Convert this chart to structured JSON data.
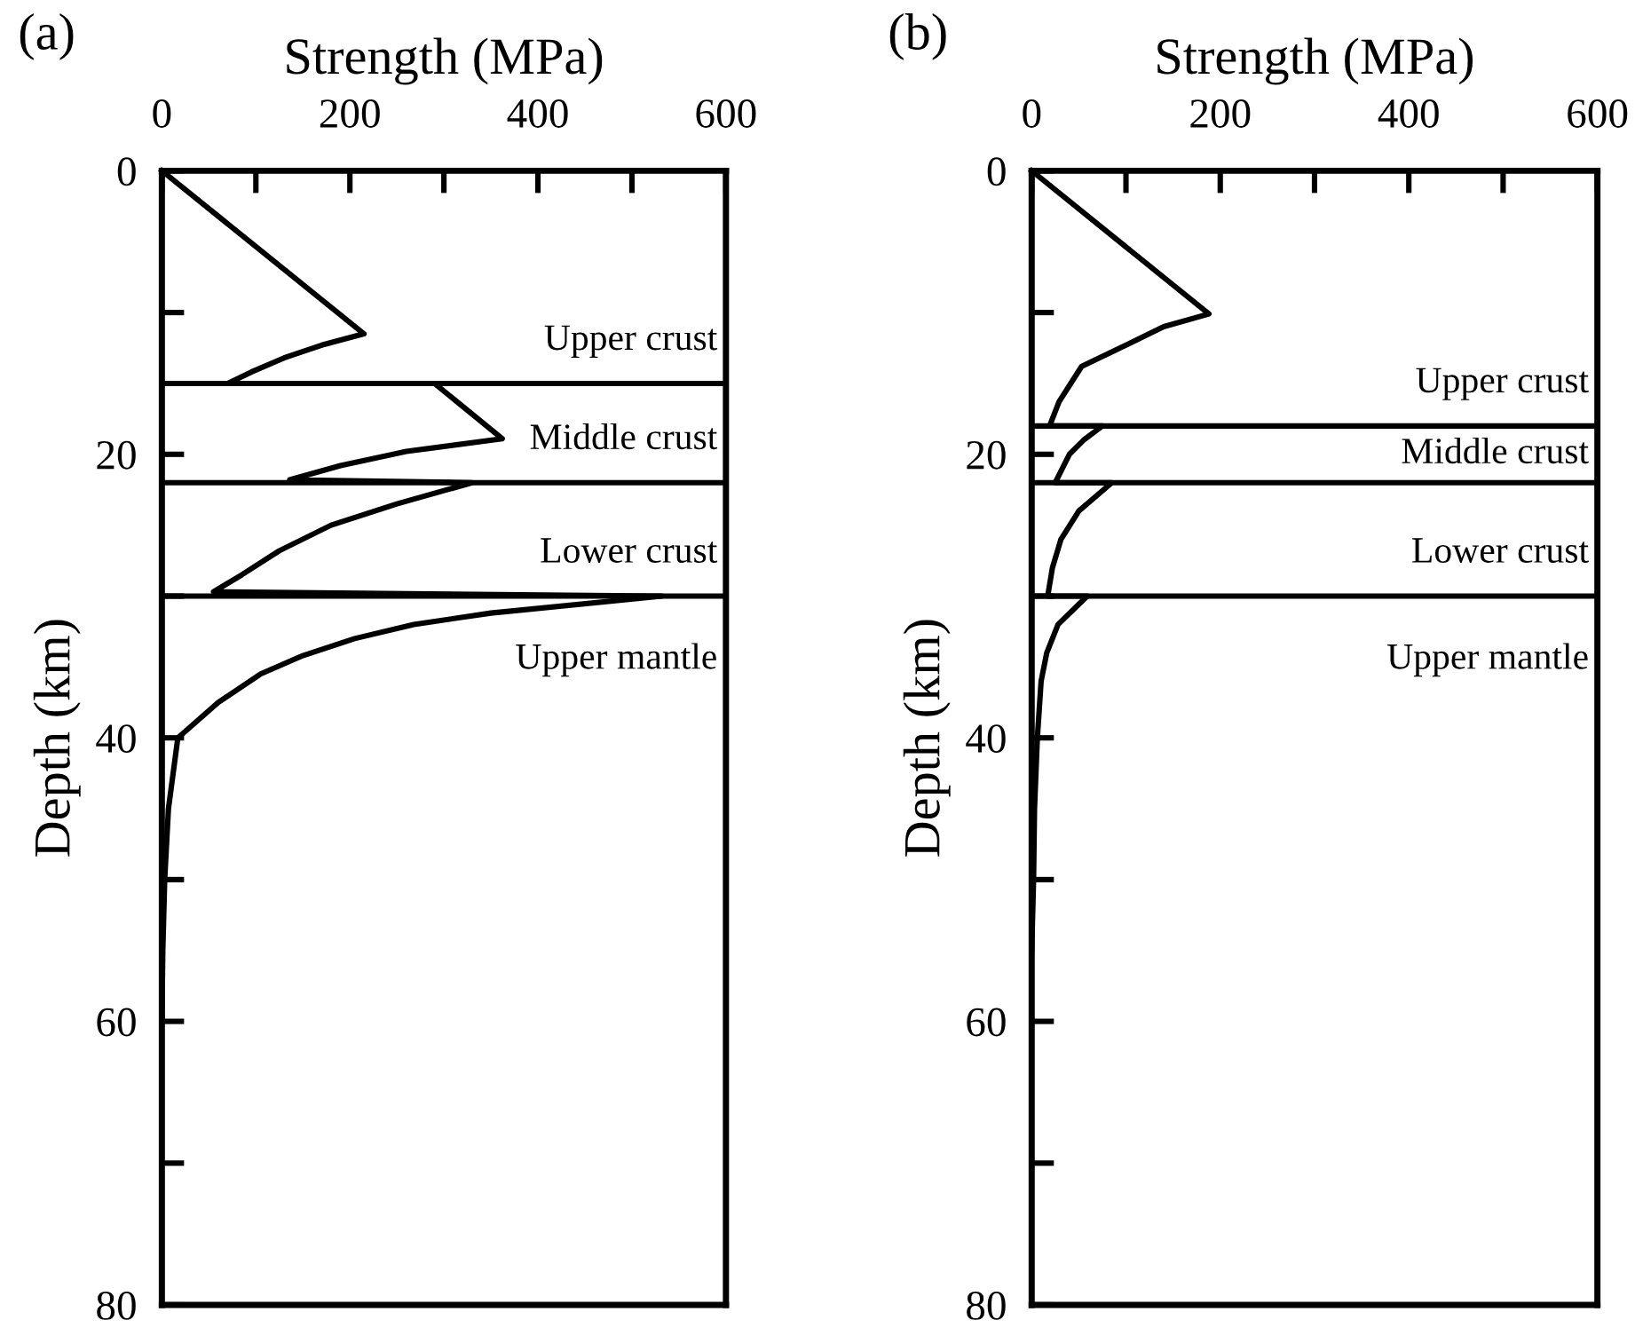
{
  "chart_data": [
    {
      "type": "line",
      "title": "(a)",
      "xlabel": "Strength (MPa)",
      "ylabel": "Depth (km)",
      "xlim": [
        0,
        600
      ],
      "ylim": [
        80,
        0
      ],
      "xticks": [
        0,
        {
          "value": 100,
          "label": null
        },
        200,
        {
          "value": 300,
          "label": null
        },
        400,
        {
          "value": 500,
          "label": null
        },
        600
      ],
      "yticks": [
        0,
        {
          "value": 10,
          "label": null
        },
        20,
        {
          "value": 30,
          "label": null
        },
        40,
        {
          "value": 50,
          "label": null
        },
        60,
        {
          "value": 70,
          "label": null
        },
        80
      ],
      "grid": false,
      "legend": false,
      "line_style": "solid",
      "marker": "none",
      "series": [
        {
          "color": "#000000",
          "x": [
            0,
            215,
            170,
            130,
            95,
            70,
            290,
            362,
            260,
            190,
            136,
            330,
            250,
            180,
            125,
            85,
            55,
            532,
            350,
            268,
            205,
            150,
            105,
            60,
            17,
            7,
            3,
            1,
            0
          ],
          "values": [
            0,
            11.5,
            12.3,
            13.2,
            14.2,
            15,
            15,
            18.9,
            19.8,
            20.8,
            21.8,
            22,
            23.5,
            25,
            26.8,
            28.5,
            29.7,
            30,
            31.2,
            32,
            33,
            34.2,
            35.5,
            37.5,
            40,
            45,
            50,
            55,
            60
          ]
        }
      ],
      "ref_lines": [
        {
          "axis": "y",
          "value": 15,
          "color": "#000000"
        },
        {
          "axis": "y",
          "value": 22,
          "color": "#000000"
        },
        {
          "axis": "y",
          "value": 30,
          "color": "#000000"
        }
      ],
      "annotations": [
        "Upper crust",
        "Middle crust",
        "Lower crust",
        "Upper mantle"
      ]
    },
    {
      "type": "line",
      "title": "(b)",
      "xlabel": "Strength (MPa)",
      "ylabel": "Depth (km)",
      "xlim": [
        0,
        600
      ],
      "ylim": [
        80,
        0
      ],
      "xticks": [
        0,
        {
          "value": 100,
          "label": null
        },
        200,
        {
          "value": 300,
          "label": null
        },
        400,
        {
          "value": 500,
          "label": null
        },
        600
      ],
      "yticks": [
        0,
        {
          "value": 10,
          "label": null
        },
        20,
        {
          "value": 30,
          "label": null
        },
        40,
        {
          "value": 50,
          "label": null
        },
        60,
        {
          "value": 70,
          "label": null
        },
        80
      ],
      "grid": false,
      "legend": false,
      "line_style": "solid",
      "marker": "none",
      "series": [
        {
          "color": "#000000",
          "x": [
            0,
            188,
            140,
            103,
            53,
            29,
            19,
            75,
            55,
            40,
            25,
            85,
            50,
            31,
            22,
            17,
            59,
            28,
            16,
            10,
            6,
            3,
            2,
            0
          ],
          "values": [
            0,
            10.1,
            11,
            12.2,
            13.8,
            16.3,
            18,
            18,
            19,
            20,
            22,
            22,
            24,
            26,
            28,
            30,
            30,
            32,
            34,
            36,
            40,
            45,
            50,
            55
          ]
        }
      ],
      "ref_lines": [
        {
          "axis": "y",
          "value": 18,
          "color": "#000000"
        },
        {
          "axis": "y",
          "value": 22,
          "color": "#000000"
        },
        {
          "axis": "y",
          "value": 30,
          "color": "#000000"
        }
      ],
      "annotations": [
        "Upper crust",
        "Middle crust",
        "Lower crust",
        "Upper mantle"
      ]
    }
  ]
}
